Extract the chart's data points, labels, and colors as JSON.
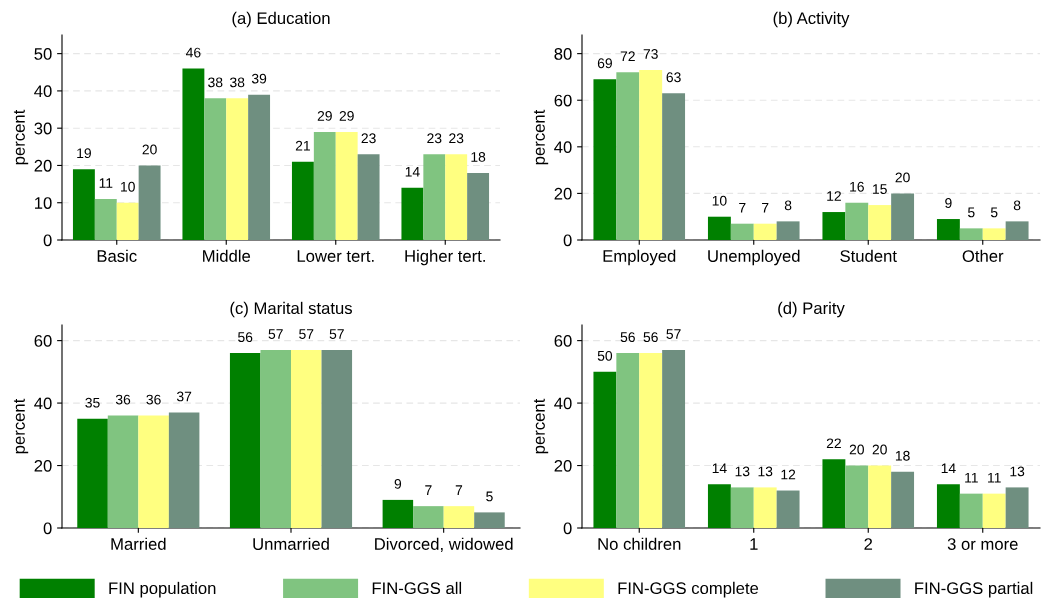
{
  "chart_data": [
    {
      "type": "bar",
      "title": "(a) Education",
      "ylabel": "percent",
      "categories": [
        "Basic",
        "Middle",
        "Lower tert.",
        "Higher tert."
      ],
      "ylim": [
        0,
        55
      ],
      "yticks": [
        0,
        10,
        20,
        30,
        40,
        50
      ],
      "grid": "y",
      "data_labels": true,
      "legend": "bottom",
      "series": [
        {
          "name": "FIN population",
          "color": "#008000",
          "values": [
            19,
            46,
            21,
            14
          ]
        },
        {
          "name": "FIN-GGS all",
          "color": "#80c480",
          "values": [
            11,
            38,
            29,
            23
          ]
        },
        {
          "name": "FIN-GGS complete",
          "color": "#ffff80",
          "values": [
            10,
            38,
            29,
            23
          ]
        },
        {
          "name": "FIN-GGS partial",
          "color": "#6f8f80",
          "values": [
            20,
            39,
            23,
            18
          ]
        }
      ]
    },
    {
      "type": "bar",
      "title": "(b) Activity",
      "ylabel": "percent",
      "categories": [
        "Employed",
        "Unemployed",
        "Student",
        "Other"
      ],
      "ylim": [
        0,
        88
      ],
      "yticks": [
        0,
        20,
        40,
        60,
        80
      ],
      "grid": "y",
      "data_labels": true,
      "series": [
        {
          "color": "#008000",
          "values": [
            69,
            10,
            12,
            9
          ]
        },
        {
          "color": "#80c480",
          "values": [
            72,
            7,
            16,
            5
          ]
        },
        {
          "color": "#ffff80",
          "values": [
            73,
            7,
            15,
            5
          ]
        },
        {
          "color": "#6f8f80",
          "values": [
            63,
            8,
            20,
            8
          ]
        }
      ]
    },
    {
      "type": "bar",
      "title": "(c) Marital status",
      "ylabel": "percent",
      "categories": [
        "Married",
        "Unmarried",
        "Divorced, widowed"
      ],
      "ylim": [
        0,
        65
      ],
      "yticks": [
        0,
        20,
        40,
        60
      ],
      "grid": "y",
      "data_labels": true,
      "series": [
        {
          "color": "#008000",
          "values": [
            35,
            56,
            9
          ]
        },
        {
          "color": "#80c480",
          "values": [
            36,
            57,
            7
          ]
        },
        {
          "color": "#ffff80",
          "values": [
            36,
            57,
            7
          ]
        },
        {
          "color": "#6f8f80",
          "values": [
            37,
            57,
            5
          ]
        }
      ]
    },
    {
      "type": "bar",
      "title": "(d) Parity",
      "ylabel": "percent",
      "categories": [
        "No children",
        "1",
        "2",
        "3 or more"
      ],
      "ylim": [
        0,
        65
      ],
      "yticks": [
        0,
        20,
        40,
        60
      ],
      "grid": "y",
      "data_labels": true,
      "series": [
        {
          "color": "#008000",
          "values": [
            50,
            14,
            22,
            14
          ]
        },
        {
          "color": "#80c480",
          "values": [
            56,
            13,
            20,
            11
          ]
        },
        {
          "color": "#ffff80",
          "values": [
            56,
            13,
            20,
            11
          ]
        },
        {
          "color": "#6f8f80",
          "values": [
            57,
            12,
            18,
            13
          ]
        }
      ]
    }
  ]
}
